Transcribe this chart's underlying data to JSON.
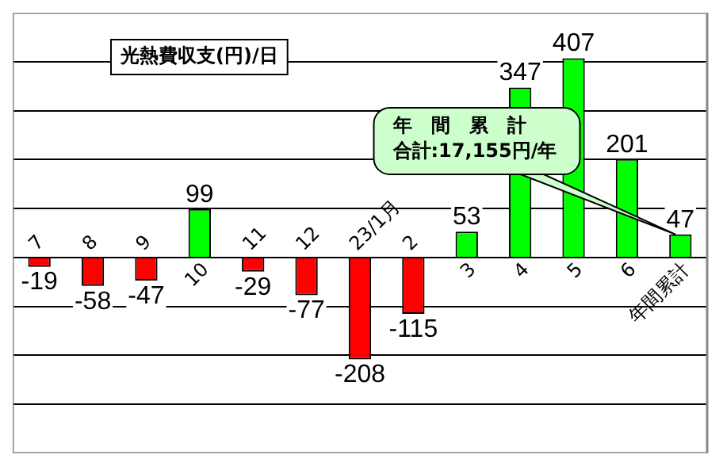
{
  "chart_data": {
    "type": "bar",
    "title": "光熱費収支(円)/日",
    "categories": [
      "7",
      "8",
      "9",
      "10",
      "11",
      "12",
      "23/1月",
      "2",
      "3",
      "4",
      "5",
      "6",
      "年間累計"
    ],
    "values": [
      -19,
      -58,
      -47,
      99,
      -29,
      -77,
      -208,
      -115,
      53,
      347,
      407,
      201,
      47
    ],
    "colors": [
      "#ff0000",
      "#ff0000",
      "#ff0000",
      "#00ff00",
      "#ff0000",
      "#ff0000",
      "#ff0000",
      "#ff0000",
      "#00ff00",
      "#00ff00",
      "#00ff00",
      "#00ff00",
      "#00ff00"
    ],
    "relative": false,
    "data_labels": true,
    "grid": "y",
    "tick_labels": "x",
    "legend": false,
    "annotations": [
      "年　間　累　計",
      {
        "text": "合計:17,155円/年",
        "x": "年間累計",
        "y": 47
      }
    ]
  }
}
